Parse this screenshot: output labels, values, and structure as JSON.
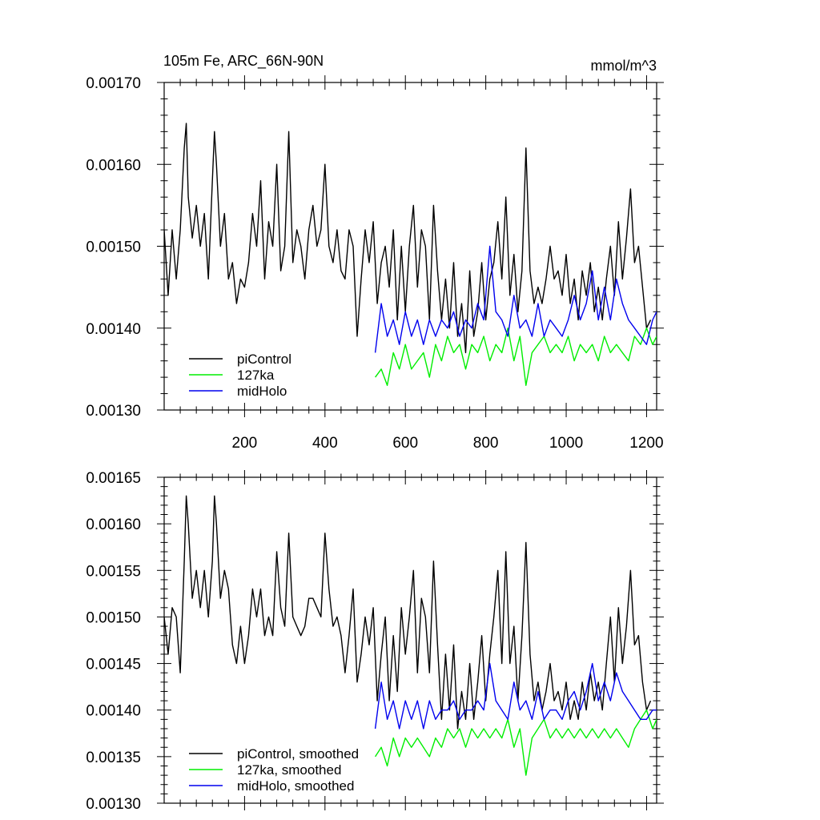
{
  "chart_data": [
    {
      "type": "line",
      "title": "105m Fe, ARC_66N-90N",
      "units": "mmol/m^3",
      "xlabel": "",
      "ylabel": "",
      "xlim": [
        0,
        1225
      ],
      "ylim": [
        0.0013,
        0.0017
      ],
      "x_ticks": [
        200,
        400,
        600,
        800,
        1000,
        1200
      ],
      "x_tick_labels": [
        "200",
        "400",
        "600",
        "800",
        "1000",
        "1200"
      ],
      "y_ticks": [
        0.0013,
        0.0014,
        0.0015,
        0.0016,
        0.0017
      ],
      "y_tick_labels": [
        "0.00130",
        "0.00140",
        "0.00150",
        "0.00160",
        "0.00170"
      ],
      "legend_position": "bottom-left",
      "series": [
        {
          "name": "piControl",
          "color": "#000000",
          "x": [
            0,
            10,
            20,
            30,
            40,
            50,
            55,
            60,
            70,
            80,
            90,
            100,
            110,
            120,
            125,
            130,
            140,
            150,
            160,
            170,
            180,
            190,
            200,
            210,
            220,
            230,
            240,
            250,
            260,
            270,
            280,
            290,
            300,
            310,
            320,
            330,
            340,
            350,
            360,
            370,
            380,
            390,
            400,
            410,
            420,
            430,
            440,
            450,
            460,
            470,
            480,
            490,
            500,
            510,
            520,
            530,
            540,
            550,
            560,
            570,
            580,
            590,
            600,
            610,
            620,
            630,
            640,
            650,
            660,
            670,
            680,
            690,
            700,
            710,
            720,
            730,
            740,
            750,
            760,
            770,
            780,
            790,
            800,
            810,
            820,
            830,
            840,
            850,
            860,
            870,
            880,
            890,
            900,
            910,
            920,
            930,
            940,
            950,
            960,
            970,
            980,
            990,
            1000,
            1010,
            1020,
            1030,
            1040,
            1050,
            1060,
            1070,
            1080,
            1090,
            1100,
            1110,
            1120,
            1130,
            1140,
            1150,
            1160,
            1170,
            1180,
            1190,
            1200,
            1210
          ],
          "y": [
            0.00152,
            0.00144,
            0.00152,
            0.00146,
            0.00152,
            0.00162,
            0.00165,
            0.00156,
            0.00151,
            0.00155,
            0.0015,
            0.00154,
            0.00146,
            0.00158,
            0.00164,
            0.0016,
            0.0015,
            0.00154,
            0.00146,
            0.00148,
            0.00143,
            0.00146,
            0.00145,
            0.00148,
            0.00154,
            0.0015,
            0.00158,
            0.00146,
            0.00153,
            0.0015,
            0.0016,
            0.00147,
            0.0015,
            0.00164,
            0.00148,
            0.00152,
            0.0015,
            0.00146,
            0.00152,
            0.00155,
            0.0015,
            0.00152,
            0.0016,
            0.0015,
            0.00148,
            0.00152,
            0.00147,
            0.00146,
            0.00152,
            0.0015,
            0.00139,
            0.00146,
            0.00152,
            0.00148,
            0.00153,
            0.00143,
            0.00148,
            0.0015,
            0.00145,
            0.00152,
            0.00141,
            0.0015,
            0.00142,
            0.0015,
            0.00155,
            0.00145,
            0.00152,
            0.0015,
            0.00141,
            0.00155,
            0.00147,
            0.00141,
            0.00146,
            0.0014,
            0.00148,
            0.00139,
            0.00143,
            0.00137,
            0.00147,
            0.00139,
            0.00142,
            0.00148,
            0.00141,
            0.00146,
            0.00148,
            0.00153,
            0.00146,
            0.00156,
            0.00144,
            0.00149,
            0.00142,
            0.00147,
            0.00162,
            0.00147,
            0.00143,
            0.00145,
            0.00143,
            0.00146,
            0.0015,
            0.00146,
            0.00147,
            0.00144,
            0.00149,
            0.00143,
            0.00146,
            0.00141,
            0.00147,
            0.00144,
            0.00148,
            0.00142,
            0.00145,
            0.00141,
            0.00146,
            0.0015,
            0.00144,
            0.00153,
            0.00146,
            0.00151,
            0.00157,
            0.00148,
            0.0015,
            0.00145,
            0.0014,
            0.00141
          ]
        },
        {
          "name": "127ka",
          "color": "#00ee00",
          "x": [
            525,
            540,
            555,
            570,
            585,
            600,
            615,
            630,
            645,
            660,
            675,
            690,
            705,
            720,
            735,
            750,
            765,
            780,
            795,
            810,
            825,
            840,
            855,
            870,
            885,
            900,
            915,
            930,
            945,
            960,
            975,
            990,
            1005,
            1020,
            1035,
            1050,
            1065,
            1080,
            1095,
            1110,
            1125,
            1140,
            1155,
            1170,
            1185,
            1200,
            1215,
            1225
          ],
          "y": [
            0.00134,
            0.00135,
            0.00133,
            0.00137,
            0.00135,
            0.00138,
            0.00135,
            0.00136,
            0.00137,
            0.00134,
            0.00138,
            0.00136,
            0.00139,
            0.00137,
            0.00138,
            0.00135,
            0.00138,
            0.00137,
            0.00139,
            0.00136,
            0.00138,
            0.00137,
            0.0014,
            0.00136,
            0.00139,
            0.00133,
            0.00137,
            0.00138,
            0.00139,
            0.00137,
            0.00138,
            0.00137,
            0.00139,
            0.00136,
            0.00138,
            0.00137,
            0.00138,
            0.00136,
            0.00139,
            0.00137,
            0.00138,
            0.00137,
            0.00136,
            0.00139,
            0.00138,
            0.0014,
            0.00138,
            0.00139
          ]
        },
        {
          "name": "midHolo",
          "color": "#0000ee",
          "x": [
            525,
            540,
            555,
            570,
            585,
            600,
            615,
            630,
            645,
            660,
            675,
            690,
            705,
            720,
            735,
            750,
            765,
            780,
            795,
            810,
            825,
            840,
            855,
            870,
            885,
            900,
            915,
            930,
            945,
            960,
            975,
            990,
            1005,
            1020,
            1035,
            1050,
            1065,
            1080,
            1095,
            1110,
            1125,
            1140,
            1155,
            1170,
            1185,
            1200,
            1215,
            1225
          ],
          "y": [
            0.00137,
            0.00143,
            0.00139,
            0.00141,
            0.00138,
            0.00142,
            0.00139,
            0.00141,
            0.00138,
            0.00141,
            0.00139,
            0.00141,
            0.0014,
            0.00142,
            0.00139,
            0.00141,
            0.0014,
            0.00143,
            0.00141,
            0.0015,
            0.00142,
            0.00141,
            0.00139,
            0.00144,
            0.0014,
            0.00141,
            0.00139,
            0.00143,
            0.00139,
            0.00141,
            0.0014,
            0.00139,
            0.00141,
            0.00144,
            0.00141,
            0.00143,
            0.00147,
            0.00141,
            0.00145,
            0.00141,
            0.00146,
            0.00143,
            0.00141,
            0.0014,
            0.00139,
            0.00138,
            0.00141,
            0.00142
          ]
        }
      ]
    },
    {
      "type": "line",
      "title": "",
      "xlabel": "",
      "ylabel": "",
      "xlim": [
        0,
        1225
      ],
      "ylim": [
        0.0013,
        0.00165
      ],
      "x_ticks": [
        200,
        400,
        600,
        800,
        1000,
        1200
      ],
      "x_tick_labels": [],
      "y_ticks": [
        0.0013,
        0.00135,
        0.0014,
        0.00145,
        0.0015,
        0.00155,
        0.0016,
        0.00165
      ],
      "y_tick_labels": [
        "0.00130",
        "0.00135",
        "0.00140",
        "0.00145",
        "0.00150",
        "0.00155",
        "0.00160",
        "0.00165"
      ],
      "legend_position": "bottom-left",
      "series": [
        {
          "name": "piControl, smoothed",
          "color": "#000000",
          "x": [
            0,
            10,
            20,
            30,
            40,
            50,
            55,
            60,
            70,
            80,
            90,
            100,
            110,
            120,
            125,
            130,
            140,
            150,
            160,
            170,
            180,
            190,
            200,
            210,
            220,
            230,
            240,
            250,
            260,
            270,
            280,
            290,
            300,
            310,
            320,
            330,
            340,
            350,
            360,
            370,
            380,
            390,
            400,
            410,
            420,
            430,
            440,
            450,
            460,
            470,
            480,
            490,
            500,
            510,
            520,
            530,
            540,
            550,
            560,
            570,
            580,
            590,
            600,
            610,
            620,
            630,
            640,
            650,
            660,
            670,
            680,
            690,
            700,
            710,
            720,
            730,
            740,
            750,
            760,
            770,
            780,
            790,
            800,
            810,
            820,
            830,
            840,
            850,
            860,
            870,
            880,
            890,
            900,
            910,
            920,
            930,
            940,
            950,
            960,
            970,
            980,
            990,
            1000,
            1010,
            1020,
            1030,
            1040,
            1050,
            1060,
            1070,
            1080,
            1090,
            1100,
            1110,
            1120,
            1130,
            1140,
            1150,
            1160,
            1170,
            1180,
            1190,
            1200,
            1210
          ],
          "y": [
            0.0015,
            0.00146,
            0.00151,
            0.0015,
            0.00144,
            0.00156,
            0.00163,
            0.0016,
            0.00152,
            0.00155,
            0.00151,
            0.00155,
            0.0015,
            0.00156,
            0.00163,
            0.0016,
            0.00152,
            0.00155,
            0.00153,
            0.00147,
            0.00145,
            0.00149,
            0.00145,
            0.00148,
            0.00153,
            0.0015,
            0.00153,
            0.00148,
            0.0015,
            0.00148,
            0.00157,
            0.00151,
            0.00149,
            0.00159,
            0.0015,
            0.00149,
            0.00148,
            0.00149,
            0.00152,
            0.00152,
            0.00151,
            0.0015,
            0.00159,
            0.00153,
            0.00149,
            0.0015,
            0.00148,
            0.00144,
            0.00148,
            0.00153,
            0.00143,
            0.00146,
            0.0015,
            0.00147,
            0.00151,
            0.00141,
            0.00146,
            0.0015,
            0.00141,
            0.00148,
            0.00142,
            0.00151,
            0.00146,
            0.0015,
            0.00155,
            0.00144,
            0.00152,
            0.0015,
            0.00144,
            0.00156,
            0.00147,
            0.00139,
            0.00146,
            0.0014,
            0.00147,
            0.00138,
            0.00142,
            0.00139,
            0.00145,
            0.00139,
            0.00143,
            0.00148,
            0.00141,
            0.00146,
            0.0015,
            0.00155,
            0.00145,
            0.00157,
            0.00145,
            0.00149,
            0.00141,
            0.00148,
            0.00158,
            0.00146,
            0.00141,
            0.00143,
            0.0014,
            0.00142,
            0.00145,
            0.00141,
            0.00142,
            0.0014,
            0.00143,
            0.00139,
            0.00141,
            0.00139,
            0.00143,
            0.0014,
            0.00144,
            0.00141,
            0.00143,
            0.0014,
            0.00145,
            0.0015,
            0.00143,
            0.00151,
            0.00145,
            0.00149,
            0.00155,
            0.00147,
            0.00148,
            0.00143,
            0.0014,
            0.00141
          ]
        },
        {
          "name": "127ka, smoothed",
          "color": "#00ee00",
          "x": [
            525,
            540,
            555,
            570,
            585,
            600,
            615,
            630,
            645,
            660,
            675,
            690,
            705,
            720,
            735,
            750,
            765,
            780,
            795,
            810,
            825,
            840,
            855,
            870,
            885,
            900,
            915,
            930,
            945,
            960,
            975,
            990,
            1005,
            1020,
            1035,
            1050,
            1065,
            1080,
            1095,
            1110,
            1125,
            1140,
            1155,
            1170,
            1185,
            1200,
            1215,
            1225
          ],
          "y": [
            0.00135,
            0.00136,
            0.00134,
            0.00137,
            0.00135,
            0.00137,
            0.00136,
            0.00137,
            0.00136,
            0.00135,
            0.00137,
            0.00136,
            0.00138,
            0.00137,
            0.00138,
            0.00136,
            0.00138,
            0.00137,
            0.00138,
            0.00137,
            0.00138,
            0.00137,
            0.00139,
            0.00136,
            0.00138,
            0.00133,
            0.00137,
            0.00138,
            0.00139,
            0.00137,
            0.00138,
            0.00137,
            0.00138,
            0.00137,
            0.00138,
            0.00137,
            0.00138,
            0.00137,
            0.00138,
            0.00137,
            0.00138,
            0.00137,
            0.00136,
            0.00138,
            0.00139,
            0.0014,
            0.00138,
            0.00139
          ]
        },
        {
          "name": "midHolo, smoothed",
          "color": "#0000ee",
          "x": [
            525,
            540,
            555,
            570,
            585,
            600,
            615,
            630,
            645,
            660,
            675,
            690,
            705,
            720,
            735,
            750,
            765,
            780,
            795,
            810,
            825,
            840,
            855,
            870,
            885,
            900,
            915,
            930,
            945,
            960,
            975,
            990,
            1005,
            1020,
            1035,
            1050,
            1065,
            1080,
            1095,
            1110,
            1125,
            1140,
            1155,
            1170,
            1185,
            1200,
            1215,
            1225
          ],
          "y": [
            0.00138,
            0.00143,
            0.00139,
            0.00141,
            0.00138,
            0.00141,
            0.00139,
            0.00141,
            0.00138,
            0.00141,
            0.00139,
            0.0014,
            0.0014,
            0.00141,
            0.00139,
            0.0014,
            0.0014,
            0.00141,
            0.0014,
            0.00145,
            0.00141,
            0.0014,
            0.00139,
            0.00143,
            0.0014,
            0.00141,
            0.00139,
            0.00142,
            0.00139,
            0.0014,
            0.0014,
            0.00139,
            0.00141,
            0.00142,
            0.0014,
            0.00142,
            0.00145,
            0.00141,
            0.00143,
            0.00141,
            0.00144,
            0.00142,
            0.00141,
            0.0014,
            0.00139,
            0.00139,
            0.0014,
            0.0014
          ]
        }
      ]
    }
  ]
}
